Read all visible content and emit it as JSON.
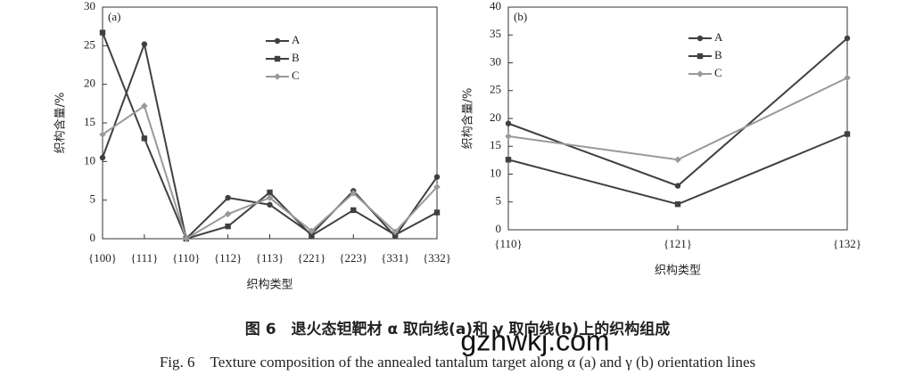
{
  "chart_data": [
    {
      "type": "line",
      "annotation": "(a)",
      "ylabel": "织构含量/%",
      "xlabel": "织构类型",
      "categories": [
        "{100}",
        "{111}",
        "{110}",
        "{112}",
        "{113}",
        "{221}",
        "{223}",
        "{331}",
        "{332}"
      ],
      "ylim": [
        0,
        30
      ],
      "yticks": [
        0,
        5,
        10,
        15,
        20,
        25,
        30
      ],
      "series": [
        {
          "name": "A",
          "color": "#404040",
          "marker": "circle",
          "values": [
            10.5,
            25.2,
            0,
            5.3,
            4.4,
            0.6,
            6.2,
            0.3,
            8.0
          ]
        },
        {
          "name": "B",
          "color": "#404040",
          "marker": "square",
          "values": [
            26.7,
            13.0,
            0,
            1.6,
            6.0,
            0.4,
            3.7,
            0.5,
            3.4
          ]
        },
        {
          "name": "C",
          "color": "#999999",
          "marker": "diamond",
          "values": [
            13.5,
            17.2,
            0,
            3.2,
            5.3,
            1.0,
            5.9,
            0.9,
            6.7
          ]
        }
      ]
    },
    {
      "type": "line",
      "annotation": "(b)",
      "ylabel": "织构含量/%",
      "xlabel": "织构类型",
      "categories": [
        "{110}",
        "{121}",
        "{132}"
      ],
      "ylim": [
        0,
        40
      ],
      "yticks": [
        0,
        5,
        10,
        15,
        20,
        25,
        30,
        35,
        40
      ],
      "series": [
        {
          "name": "A",
          "color": "#404040",
          "marker": "circle",
          "values": [
            19.1,
            7.9,
            34.4
          ]
        },
        {
          "name": "B",
          "color": "#404040",
          "marker": "square",
          "values": [
            12.6,
            4.6,
            17.2
          ]
        },
        {
          "name": "C",
          "color": "#999999",
          "marker": "diamond",
          "values": [
            16.8,
            12.6,
            27.3
          ]
        }
      ]
    }
  ],
  "caption_cn": "图 6　退火态钽靶材 α 取向线(a)和 γ 取向线(b)上的织构组成",
  "caption_en": "Fig. 6　Texture composition of the annealed tantalum target along α (a) and γ (b) orientation lines",
  "watermark": "gzhwkj.com"
}
